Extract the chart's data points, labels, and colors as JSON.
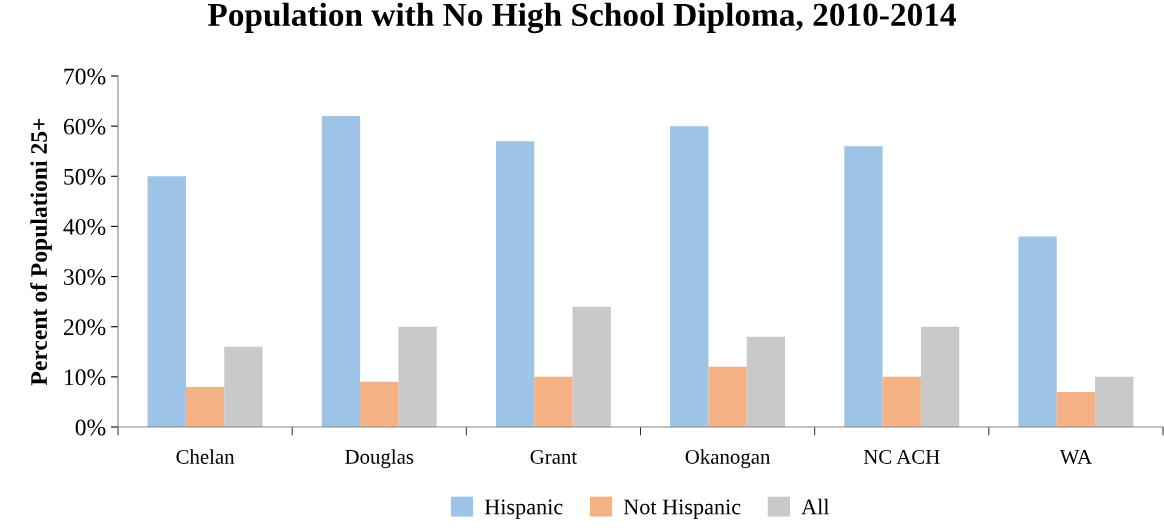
{
  "chart_data": {
    "type": "bar",
    "title": "Population with No High School Diploma, 2010-2014",
    "ylabel": "Percent of Populationi 25+",
    "categories": [
      "Chelan",
      "Douglas",
      "Grant",
      "Okanogan",
      "NC ACH",
      "WA"
    ],
    "series": [
      {
        "name": "Hispanic",
        "color": "#9dc3e6",
        "values": [
          50,
          62,
          57,
          60,
          56,
          38
        ]
      },
      {
        "name": "Not Hispanic",
        "color": "#f4b183",
        "values": [
          8,
          9,
          10,
          12,
          10,
          7
        ]
      },
      {
        "name": "All",
        "color": "#c9c9c9",
        "values": [
          16,
          20,
          24,
          18,
          20,
          10
        ]
      }
    ],
    "ylim": [
      0,
      70
    ],
    "yticks": [
      {
        "value": 0,
        "label": "0%"
      },
      {
        "value": 10,
        "label": "10%"
      },
      {
        "value": 20,
        "label": "20%"
      },
      {
        "value": 30,
        "label": "30%"
      },
      {
        "value": 40,
        "label": "40%"
      },
      {
        "value": 50,
        "label": "50%"
      },
      {
        "value": 60,
        "label": "60%"
      },
      {
        "value": 70,
        "label": "70%"
      }
    ],
    "grid": false,
    "legend": "bottom"
  }
}
